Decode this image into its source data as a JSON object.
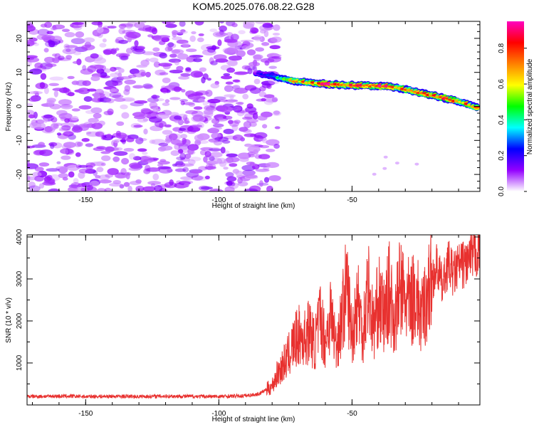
{
  "title": "KOM5.2025.076.08.22.G28",
  "colors": {
    "snr_line": "#e8312f",
    "frame": "#000000",
    "background": "#ffffff"
  },
  "colormap": [
    "#ffffff",
    "#9400ff",
    "#0000ff",
    "#00ffff",
    "#00ff00",
    "#ffff00",
    "#ff8000",
    "#ff0000",
    "#ff00c0"
  ],
  "chart_data": [
    {
      "type": "heatmap",
      "xlabel": "Height of straight line (km)",
      "ylabel": "Frequency (Hz)",
      "xlim": [
        -172,
        -2
      ],
      "ylim": [
        -25,
        25
      ],
      "xticks": [
        -150,
        -100,
        -50
      ],
      "xtick_labels": [
        "-150",
        "-100",
        "-50"
      ],
      "yticks": [
        -20,
        -10,
        0,
        10,
        20
      ],
      "ytick_labels": [
        "-20",
        "-10",
        "0",
        "10",
        "20"
      ],
      "grid": false,
      "noise_region": {
        "x": [
          -172,
          -80
        ],
        "y": [
          -25,
          25
        ],
        "amplitude": [
          0.0,
          0.2
        ]
      },
      "signal_track": {
        "x": [
          -86,
          -80,
          -72,
          -65,
          -58,
          -50,
          -44,
          -38,
          -32,
          -26,
          -20,
          -14,
          -8,
          -2
        ],
        "frequency": [
          9.8,
          8.9,
          7.5,
          6.9,
          6.5,
          6.2,
          6.1,
          6.0,
          5.3,
          4.3,
          3.3,
          2.2,
          1.0,
          -0.7
        ],
        "amplitude": [
          0.15,
          0.3,
          0.7,
          0.75,
          0.9,
          0.85,
          0.8,
          0.95,
          0.8,
          0.9,
          0.85,
          0.8,
          0.75,
          0.95
        ]
      },
      "colorbar": {
        "label": "Normalized spectral amplitude",
        "range": [
          0,
          0.95
        ],
        "ticks": [
          0.0,
          0.2,
          0.4,
          0.6,
          0.8
        ],
        "tick_labels": [
          "0.0",
          "0.2",
          "0.4",
          "0.6",
          "0.8"
        ]
      }
    },
    {
      "type": "line",
      "xlabel": "Height of straight line (km)",
      "ylabel": "SNR (10 * v/v)",
      "xlim": [
        -172,
        -2
      ],
      "ylim": [
        0,
        4050
      ],
      "xticks": [
        -150,
        -100,
        -50
      ],
      "xtick_labels": [
        "-150",
        "-100",
        "-50"
      ],
      "yticks": [
        1000,
        2000,
        3000,
        4000
      ],
      "ytick_labels": [
        "1000",
        "2000",
        "3000",
        "4000"
      ],
      "grid": false,
      "series": [
        {
          "x": [
            -172,
            -160,
            -150,
            -140,
            -130,
            -120,
            -110,
            -100,
            -90,
            -85,
            -80,
            -78,
            -76,
            -74,
            -72,
            -70,
            -68,
            -66,
            -64,
            -62,
            -60,
            -58,
            -56,
            -54,
            -52,
            -50,
            -48,
            -46,
            -44,
            -42,
            -40,
            -38,
            -36,
            -34,
            -32,
            -30,
            -28,
            -26,
            -24,
            -22,
            -20,
            -18,
            -16,
            -14,
            -12,
            -10,
            -8,
            -6,
            -4,
            -2
          ],
          "y": [
            200,
            210,
            200,
            205,
            200,
            210,
            205,
            200,
            220,
            260,
            450,
            750,
            950,
            1150,
            1450,
            1650,
            1550,
            1800,
            1400,
            2100,
            1500,
            2200,
            1400,
            2000,
            2900,
            1600,
            2600,
            1700,
            2900,
            1800,
            2500,
            2100,
            2700,
            2000,
            2800,
            2500,
            2400,
            2700,
            2000,
            2600,
            3000,
            3300,
            2800,
            3400,
            3100,
            3300,
            3350,
            3450,
            3550,
            3700
          ]
        }
      ]
    }
  ]
}
